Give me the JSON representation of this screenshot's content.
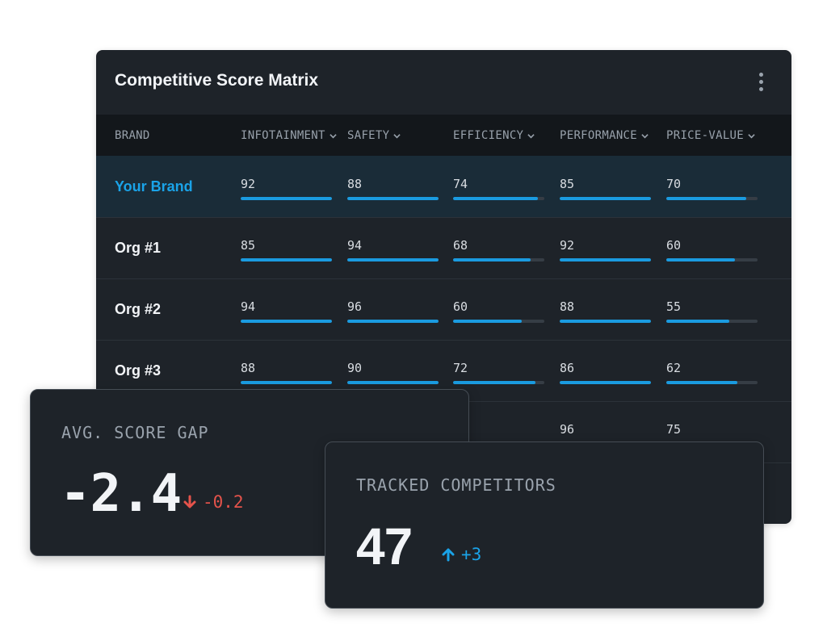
{
  "matrix": {
    "title": "Competitive Score Matrix",
    "columns": [
      "BRAND",
      "INFOTAINMENT",
      "SAFETY",
      "EFFICIENCY",
      "PERFORMANCE",
      "PRICE-VALUE"
    ],
    "rows": [
      {
        "brand": "Your Brand",
        "highlight": true,
        "scores": [
          92,
          88,
          74,
          85,
          70
        ]
      },
      {
        "brand": "Org #1",
        "scores": [
          85,
          94,
          68,
          92,
          60
        ]
      },
      {
        "brand": "Org #2",
        "scores": [
          94,
          96,
          60,
          88,
          55
        ]
      },
      {
        "brand": "Org #3",
        "scores": [
          88,
          90,
          72,
          86,
          62
        ]
      },
      {
        "brand": "",
        "scores": [
          null,
          null,
          null,
          96,
          75
        ]
      }
    ],
    "bar_scale_max": 80
  },
  "stats": {
    "avg_gap": {
      "label": "AVG. SCORE GAP",
      "value": "-2.4",
      "delta": "-0.2",
      "direction": "down",
      "color": "#e5534b"
    },
    "tracked": {
      "label": "TRACKED COMPETITORS",
      "value": "47",
      "delta": "+3",
      "direction": "up",
      "color": "#1aa3e8"
    }
  },
  "icons": {
    "menu": "kebab-icon",
    "sort": "chevron-down-icon",
    "down": "arrow-down-icon",
    "up": "arrow-up-icon"
  },
  "colors": {
    "accent": "#1aa3e8",
    "negative": "#e5534b",
    "card_bg": "#1e2329",
    "header_bg": "#13171b"
  }
}
